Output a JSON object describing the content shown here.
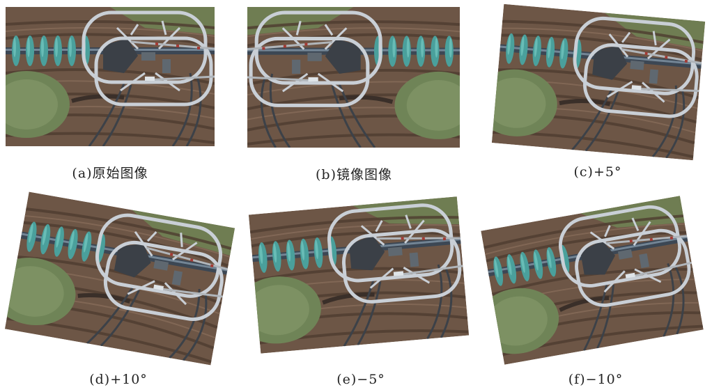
{
  "panels": [
    {
      "id": "a",
      "caption": "(a)原始图像",
      "mirror": false,
      "angle": 0
    },
    {
      "id": "b",
      "caption": "(b)镜像图像",
      "mirror": true,
      "angle": 0
    },
    {
      "id": "c",
      "caption": "(c)+5°",
      "mirror": false,
      "angle": 5
    },
    {
      "id": "d",
      "caption": "(d)+10°",
      "mirror": false,
      "angle": 10
    },
    {
      "id": "e",
      "caption": "(e)−5°",
      "mirror": false,
      "angle": -5
    },
    {
      "id": "f",
      "caption": "(f)−10°",
      "mirror": false,
      "angle": -10
    }
  ]
}
